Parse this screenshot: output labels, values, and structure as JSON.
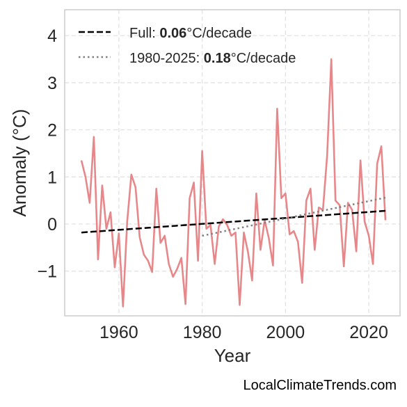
{
  "chart_data": {
    "type": "line",
    "xlabel": "Year",
    "ylabel": "Anomaly (°C)",
    "xlim": [
      1947,
      2027.5
    ],
    "ylim": [
      -1.95,
      4.55
    ],
    "x_ticks": [
      1960,
      1980,
      2000,
      2020
    ],
    "x_tick_labels": [
      "1960",
      "1980",
      "2000",
      "2020"
    ],
    "y_ticks": [
      -1,
      0,
      1,
      2,
      3,
      4
    ],
    "y_tick_labels": [
      "−1",
      "0",
      "1",
      "2",
      "3",
      "4"
    ],
    "grid": true,
    "legend_position": "top-left",
    "series": [
      {
        "kind": "anomaly",
        "color": "#e8878a",
        "x": [
          1951,
          1952,
          1953,
          1954,
          1955,
          1956,
          1957,
          1958,
          1959,
          1960,
          1961,
          1962,
          1963,
          1964,
          1965,
          1966,
          1967,
          1968,
          1969,
          1970,
          1971,
          1972,
          1973,
          1974,
          1975,
          1976,
          1977,
          1978,
          1979,
          1980,
          1981,
          1982,
          1983,
          1984,
          1985,
          1986,
          1987,
          1988,
          1989,
          1990,
          1991,
          1992,
          1993,
          1994,
          1995,
          1996,
          1997,
          1998,
          1999,
          2000,
          2001,
          2002,
          2003,
          2004,
          2005,
          2006,
          2007,
          2008,
          2009,
          2010,
          2011,
          2012,
          2013,
          2014,
          2015,
          2016,
          2017,
          2018,
          2019,
          2020,
          2021,
          2022,
          2023,
          2024
        ],
        "y": [
          1.35,
          1.0,
          0.45,
          1.85,
          -0.75,
          0.82,
          -0.1,
          0.25,
          -0.92,
          -0.2,
          -1.75,
          0.05,
          1.05,
          0.78,
          -0.28,
          -0.65,
          -0.78,
          -1.02,
          0.75,
          -0.4,
          -0.25,
          -0.85,
          -1.12,
          -0.95,
          -0.72,
          -1.7,
          0.55,
          0.88,
          -0.78,
          1.55,
          -0.1,
          -0.02,
          -0.85,
          -0.05,
          0.1,
          -0.02,
          -0.25,
          -0.18,
          -1.72,
          -0.18,
          -0.6,
          -1.2,
          0.65,
          -0.55,
          0.08,
          -0.3,
          -0.88,
          2.45,
          0.55,
          0.65,
          -0.22,
          -0.15,
          -0.38,
          -1.25,
          0.5,
          0.75,
          -0.55,
          0.35,
          0.3,
          1.45,
          3.5,
          0.5,
          0.4,
          -0.9,
          0.45,
          0.3,
          -0.58,
          1.35,
          0.05,
          -0.25,
          -0.85,
          1.28,
          1.65,
          0.08
        ]
      },
      {
        "name": "Full",
        "kind": "trend",
        "color": "#000000",
        "dash": "dashed",
        "trend_per_decade": "0.06",
        "x": [
          1951,
          2024
        ],
        "y": [
          -0.18,
          0.28
        ]
      },
      {
        "name": "1980-2025",
        "kind": "trend",
        "color": "#808080",
        "dash": "dotted",
        "trend_per_decade": "0.18",
        "x": [
          1980,
          2024
        ],
        "y": [
          -0.25,
          0.56
        ]
      }
    ],
    "legend": [
      {
        "label_prefix": "Full: ",
        "value": "0.06",
        "unit": "°C/decade"
      },
      {
        "label_prefix": "1980-2025: ",
        "value": "0.18",
        "unit": "°C/decade"
      }
    ]
  },
  "credit": "LocalClimateTrends.com"
}
